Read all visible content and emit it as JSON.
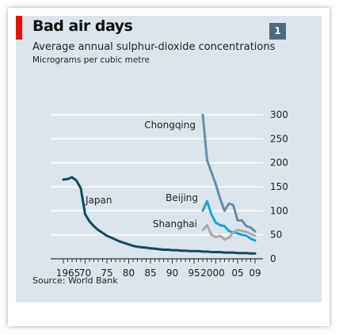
{
  "chart_data": {
    "type": "line",
    "title": "Bad air days",
    "subtitle": "Average annual sulphur-dioxide concentrations",
    "ylabel": "Micrograms per cubic metre",
    "xlabel": "",
    "source": "Source: World Bank",
    "badge": "1",
    "ylim": [
      0,
      300
    ],
    "xlim": [
      1965,
      2009
    ],
    "y_ticks": [
      "0",
      "50",
      "100",
      "150",
      "200",
      "250",
      "300"
    ],
    "y_tick_values": [
      0,
      50,
      100,
      150,
      200,
      250,
      300
    ],
    "x_tick_labels": [
      "1965",
      "70",
      "75",
      "80",
      "85",
      "90",
      "95",
      "2000",
      "05",
      "09"
    ],
    "x_tick_values": [
      1965,
      1970,
      1975,
      1980,
      1985,
      1990,
      1995,
      2000,
      2005,
      2009
    ],
    "grid": true,
    "y_axis_side": "right",
    "series": [
      {
        "name": "Japan",
        "color": "#0f4b5e",
        "width": 3,
        "points": [
          [
            1965,
            165
          ],
          [
            1966,
            166
          ],
          [
            1967,
            170
          ],
          [
            1968,
            163
          ],
          [
            1969,
            147
          ],
          [
            1970,
            93
          ],
          [
            1971,
            78
          ],
          [
            1972,
            68
          ],
          [
            1973,
            60
          ],
          [
            1974,
            54
          ],
          [
            1975,
            48
          ],
          [
            1976,
            44
          ],
          [
            1977,
            40
          ],
          [
            1978,
            36
          ],
          [
            1979,
            33
          ],
          [
            1980,
            30
          ],
          [
            1981,
            27
          ],
          [
            1982,
            25
          ],
          [
            1983,
            24
          ],
          [
            1984,
            23
          ],
          [
            1985,
            22
          ],
          [
            1986,
            21
          ],
          [
            1987,
            20
          ],
          [
            1988,
            19
          ],
          [
            1989,
            19
          ],
          [
            1990,
            18
          ],
          [
            1991,
            18
          ],
          [
            1992,
            17
          ],
          [
            1993,
            17
          ],
          [
            1994,
            16
          ],
          [
            1995,
            16
          ],
          [
            1996,
            16
          ],
          [
            1997,
            15
          ],
          [
            1998,
            15
          ],
          [
            1999,
            14
          ],
          [
            2000,
            14
          ],
          [
            2001,
            14
          ],
          [
            2002,
            13
          ],
          [
            2003,
            13
          ],
          [
            2004,
            13
          ],
          [
            2005,
            12
          ],
          [
            2006,
            12
          ],
          [
            2007,
            12
          ],
          [
            2008,
            11
          ],
          [
            2009,
            11
          ]
        ]
      },
      {
        "name": "Chongqing",
        "color": "#6a8da3",
        "width": 3,
        "points": [
          [
            1997,
            300
          ],
          [
            1998,
            205
          ],
          [
            1999,
            180
          ],
          [
            2000,
            155
          ],
          [
            2001,
            125
          ],
          [
            2002,
            100
          ],
          [
            2003,
            115
          ],
          [
            2004,
            112
          ],
          [
            2005,
            80
          ],
          [
            2006,
            80
          ],
          [
            2007,
            68
          ],
          [
            2008,
            65
          ],
          [
            2009,
            57
          ]
        ]
      },
      {
        "name": "Beijing",
        "color": "#1aa3d8",
        "width": 3,
        "points": [
          [
            1997,
            100
          ],
          [
            1998,
            120
          ],
          [
            1999,
            92
          ],
          [
            2000,
            75
          ],
          [
            2001,
            70
          ],
          [
            2002,
            68
          ],
          [
            2003,
            58
          ],
          [
            2004,
            55
          ],
          [
            2005,
            53
          ],
          [
            2006,
            50
          ],
          [
            2007,
            48
          ],
          [
            2008,
            42
          ],
          [
            2009,
            38
          ]
        ]
      },
      {
        "name": "Shanghai",
        "color": "#a8acae",
        "width": 3,
        "points": [
          [
            1997,
            60
          ],
          [
            1998,
            70
          ],
          [
            1999,
            50
          ],
          [
            2000,
            45
          ],
          [
            2001,
            48
          ],
          [
            2002,
            40
          ],
          [
            2003,
            44
          ],
          [
            2004,
            55
          ],
          [
            2005,
            60
          ],
          [
            2006,
            58
          ],
          [
            2007,
            56
          ],
          [
            2008,
            52
          ],
          [
            2009,
            48
          ]
        ]
      }
    ]
  }
}
